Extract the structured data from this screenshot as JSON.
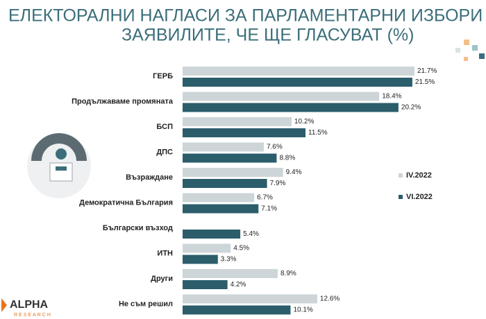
{
  "chart_data": {
    "type": "bar",
    "orientation": "horizontal",
    "title": [
      "ЕЛЕКТОРАЛНИ НАГЛАСИ ЗА ПАРЛАМЕНТАРНИ ИЗБОРИ СРЕД",
      "ЗАЯВИЛИТЕ, ЧЕ ЩЕ ГЛАСУВАТ (%)"
    ],
    "categories": [
      "ГЕРБ",
      "Продължаваме промяната",
      "БСП",
      "ДПС",
      "Възраждане",
      "Демократична България",
      "Български възход",
      "ИТН",
      "Други",
      "Не съм решил"
    ],
    "series": [
      {
        "name": "IV.2022",
        "color": "#cdd5d8",
        "values": [
          21.7,
          18.4,
          10.2,
          7.6,
          9.4,
          6.7,
          null,
          4.5,
          8.9,
          12.6
        ],
        "value_labels": [
          "21.7%",
          "18.4%",
          "10.2%",
          "7.6%",
          "9.4%",
          "6.7%",
          null,
          "4.5%",
          "8.9%",
          "12.6%"
        ]
      },
      {
        "name": "VI.2022",
        "color": "#2b5d6b",
        "values": [
          21.5,
          20.2,
          11.5,
          8.8,
          7.9,
          7.1,
          5.4,
          3.3,
          4.2,
          10.1
        ],
        "value_labels": [
          "21.5%",
          "20.2%",
          "11.5%",
          "8.8%",
          "7.9%",
          "7.1%",
          "5.4%",
          "3.3%",
          "4.2%",
          "10.1%"
        ]
      }
    ],
    "legend": "right"
  },
  "logo": {
    "name": "ALPHA",
    "sub": "RESEARCH"
  }
}
